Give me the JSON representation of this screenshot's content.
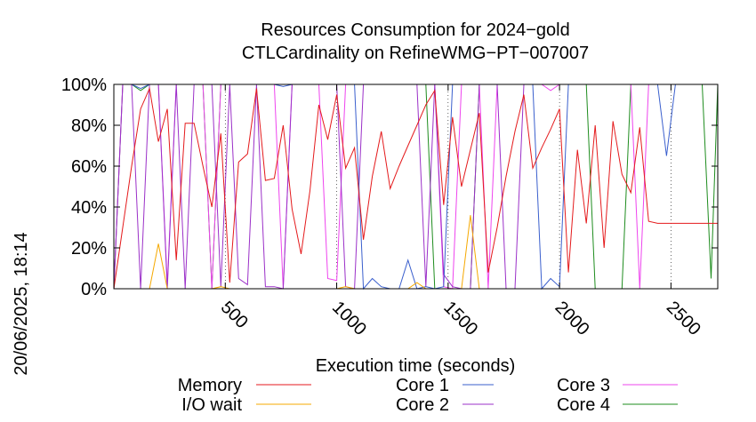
{
  "chart_data": {
    "type": "line",
    "title": [
      "Resources Consumption for 2024−gold",
      "CTLCardinality on RefineWMG−PT−007007"
    ],
    "xlabel": "Execution time (seconds)",
    "ylabel": "",
    "side_label": "20/06/2025, 18:14",
    "xlim": [
      0,
      2710
    ],
    "ylim": [
      0,
      100
    ],
    "x_ticks": [
      500,
      1000,
      1500,
      2000,
      2500
    ],
    "x_tick_labels": [
      "500",
      "1000",
      "1500",
      "2000",
      "2500"
    ],
    "y_ticks": [
      0,
      20,
      40,
      60,
      80,
      100
    ],
    "y_tick_labels": [
      "0%",
      "20%",
      "40%",
      "60%",
      "80%",
      "100%"
    ],
    "grid": "dotted vertical at x ticks",
    "legend_position": "bottom",
    "series": [
      {
        "name": "Memory",
        "color": "#e41a1c",
        "x": [
          0,
          40,
          80,
          120,
          160,
          200,
          240,
          280,
          320,
          360,
          400,
          440,
          480,
          520,
          560,
          600,
          640,
          680,
          720,
          760,
          800,
          840,
          880,
          920,
          960,
          1000,
          1040,
          1080,
          1120,
          1160,
          1200,
          1240,
          1280,
          1320,
          1360,
          1400,
          1440,
          1480,
          1520,
          1560,
          1600,
          1640,
          1680,
          1720,
          1760,
          1800,
          1840,
          1880,
          1920,
          1960,
          2000,
          2040,
          2080,
          2120,
          2160,
          2200,
          2240,
          2280,
          2320,
          2360,
          2400,
          2440,
          2480,
          2520,
          2560,
          2600,
          2640,
          2680,
          2710
        ],
        "values": [
          0,
          30,
          60,
          88,
          98,
          72,
          88,
          14,
          81,
          81,
          60,
          40,
          76,
          3,
          62,
          66,
          98,
          53,
          54,
          80,
          39,
          17,
          48,
          90,
          73,
          95,
          59,
          69,
          24,
          55,
          77,
          49,
          60,
          70,
          80,
          90,
          97,
          41,
          84,
          50,
          68,
          86,
          8,
          30,
          55,
          77,
          95,
          59,
          69,
          78,
          88,
          8,
          68,
          32,
          80,
          20,
          82,
          56,
          47,
          79,
          33,
          32,
          32,
          32,
          32,
          32,
          32,
          32,
          32
        ]
      },
      {
        "name": "I/O wait",
        "color": "#f5a800",
        "x": [
          0,
          40,
          80,
          120,
          160,
          200,
          240,
          280,
          320,
          360,
          400,
          440,
          480,
          520,
          560,
          600,
          640,
          680,
          720,
          760,
          800,
          840,
          880,
          920,
          960,
          1000,
          1040,
          1080,
          1120,
          1160,
          1200,
          1240,
          1280,
          1320,
          1360,
          1400,
          1440,
          1480,
          1520,
          1560,
          1600,
          1640,
          1680,
          1720,
          1760,
          1800,
          1840,
          1880,
          1920,
          1960,
          2000,
          2040,
          2080,
          2120,
          2160,
          2200,
          2240,
          2280,
          2320,
          2360,
          2400,
          2440,
          2480,
          2520,
          2560,
          2600,
          2640,
          2680,
          2710
        ],
        "values": [
          0,
          0,
          0,
          0,
          0,
          22,
          0,
          0,
          0,
          0,
          0,
          0,
          1,
          0,
          0,
          0,
          0,
          0,
          0,
          0,
          0,
          0,
          0,
          0,
          0,
          0,
          1,
          0,
          0,
          0,
          0,
          0,
          0,
          0,
          3,
          0,
          0,
          0,
          0,
          0,
          36,
          0,
          0,
          0,
          0,
          0,
          0,
          0,
          0,
          0,
          0,
          0,
          0,
          0,
          0,
          0,
          0,
          0,
          0,
          0,
          0,
          0,
          0,
          0,
          0,
          0,
          0,
          0,
          0
        ]
      },
      {
        "name": "Core 1",
        "color": "#3a5fcd",
        "x": [
          0,
          40,
          80,
          120,
          160,
          200,
          240,
          280,
          320,
          360,
          400,
          440,
          480,
          520,
          560,
          600,
          640,
          680,
          720,
          760,
          800,
          840,
          880,
          920,
          960,
          1000,
          1040,
          1080,
          1120,
          1160,
          1200,
          1240,
          1280,
          1320,
          1360,
          1400,
          1440,
          1480,
          1520,
          1560,
          1600,
          1640,
          1680,
          1720,
          1760,
          1800,
          1840,
          1880,
          1920,
          1960,
          2000,
          2040,
          2080,
          2120,
          2160,
          2200,
          2240,
          2280,
          2320,
          2360,
          2400,
          2440,
          2480,
          2520,
          2560,
          2600,
          2640,
          2680,
          2710
        ],
        "values": [
          100,
          100,
          100,
          98,
          100,
          100,
          100,
          100,
          100,
          100,
          100,
          100,
          100,
          100,
          100,
          100,
          100,
          100,
          100,
          99,
          100,
          100,
          100,
          100,
          100,
          100,
          100,
          100,
          0,
          5,
          1,
          0,
          0,
          14,
          0,
          1,
          0,
          1,
          100,
          100,
          100,
          100,
          100,
          100,
          100,
          100,
          100,
          100,
          0,
          5,
          1,
          100,
          100,
          100,
          100,
          100,
          100,
          100,
          100,
          100,
          100,
          100,
          65,
          100,
          100,
          100,
          100,
          100,
          100
        ]
      },
      {
        "name": "Core 2",
        "color": "#9b30c8",
        "x": [
          0,
          40,
          80,
          120,
          160,
          200,
          240,
          280,
          320,
          360,
          400,
          440,
          480,
          520,
          560,
          600,
          640,
          680,
          720,
          760,
          800,
          840,
          880,
          920,
          960,
          1000,
          1040,
          1080,
          1120,
          1160,
          1200,
          1240,
          1280,
          1320,
          1360,
          1400,
          1440,
          1480,
          1520,
          1560,
          1600,
          1640,
          1680,
          1720,
          1760,
          1800,
          1840,
          1880,
          1920,
          1960,
          2000,
          2040,
          2080,
          2120,
          2160,
          2200,
          2240,
          2280,
          2320,
          2360,
          2400,
          2440,
          2480,
          2520,
          2560,
          2600,
          2640,
          2680,
          2710
        ],
        "values": [
          0,
          100,
          100,
          0,
          100,
          100,
          0,
          100,
          0,
          100,
          100,
          100,
          1,
          100,
          5,
          2,
          100,
          1,
          1,
          0,
          100,
          100,
          100,
          100,
          100,
          100,
          1,
          0,
          100,
          100,
          100,
          100,
          100,
          100,
          100,
          1,
          100,
          7,
          1,
          0,
          0,
          100,
          100,
          100,
          0,
          0,
          100,
          100,
          100,
          100,
          100,
          100,
          100,
          100,
          100,
          100,
          100,
          100,
          100,
          100,
          100,
          100,
          100,
          100,
          100,
          100,
          100,
          100,
          100
        ]
      },
      {
        "name": "Core 3",
        "color": "#ee44ee",
        "x": [
          0,
          40,
          80,
          120,
          160,
          200,
          240,
          280,
          320,
          360,
          400,
          440,
          480,
          520,
          560,
          600,
          640,
          680,
          720,
          760,
          800,
          840,
          880,
          920,
          960,
          1000,
          1040,
          1080,
          1120,
          1160,
          1200,
          1240,
          1280,
          1320,
          1360,
          1400,
          1440,
          1480,
          1520,
          1560,
          1600,
          1640,
          1680,
          1720,
          1760,
          1800,
          1840,
          1880,
          1920,
          1960,
          2000,
          2040,
          2080,
          2120,
          2160,
          2200,
          2240,
          2280,
          2320,
          2360,
          2400,
          2440,
          2480,
          2520,
          2560,
          2600,
          2640,
          2680,
          2710
        ],
        "values": [
          0,
          100,
          100,
          100,
          100,
          100,
          2,
          100,
          100,
          100,
          100,
          0,
          100,
          100,
          100,
          100,
          100,
          100,
          100,
          0,
          100,
          100,
          100,
          100,
          5,
          4,
          100,
          100,
          100,
          100,
          100,
          100,
          100,
          100,
          100,
          100,
          100,
          1,
          0,
          100,
          100,
          100,
          0,
          100,
          100,
          100,
          100,
          100,
          100,
          97,
          100,
          100,
          100,
          100,
          100,
          100,
          100,
          100,
          100,
          0,
          100,
          100,
          100,
          100,
          100,
          100,
          100,
          100,
          100
        ]
      },
      {
        "name": "Core 4",
        "color": "#1e8c1e",
        "x": [
          0,
          40,
          80,
          120,
          160,
          200,
          240,
          280,
          320,
          360,
          400,
          440,
          480,
          520,
          560,
          600,
          640,
          680,
          720,
          760,
          800,
          840,
          880,
          920,
          960,
          1000,
          1040,
          1080,
          1120,
          1160,
          1200,
          1240,
          1280,
          1320,
          1360,
          1400,
          1440,
          1480,
          1520,
          1560,
          1600,
          1640,
          1680,
          1720,
          1760,
          1800,
          1840,
          1880,
          1920,
          1960,
          2000,
          2040,
          2080,
          2120,
          2160,
          2200,
          2240,
          2280,
          2320,
          2360,
          2400,
          2440,
          2480,
          2520,
          2560,
          2600,
          2640,
          2680,
          2710
        ],
        "values": [
          0,
          100,
          100,
          97,
          100,
          100,
          100,
          100,
          100,
          100,
          100,
          0,
          100,
          100,
          100,
          100,
          100,
          100,
          100,
          100,
          100,
          100,
          100,
          100,
          100,
          100,
          100,
          100,
          100,
          100,
          100,
          100,
          100,
          100,
          100,
          100,
          0,
          0,
          0,
          0,
          0,
          100,
          100,
          100,
          100,
          100,
          100,
          100,
          100,
          100,
          100,
          100,
          100,
          100,
          0,
          0,
          0,
          0,
          100,
          100,
          100,
          100,
          100,
          100,
          100,
          100,
          100,
          5,
          100
        ]
      }
    ]
  }
}
